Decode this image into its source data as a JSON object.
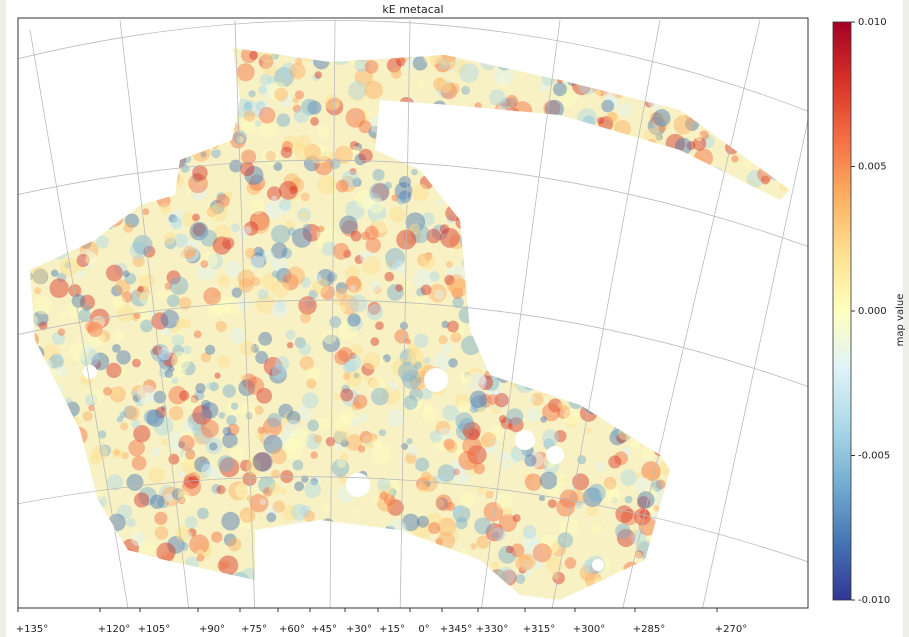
{
  "chart_data": {
    "type": "map",
    "title": "kE metacal",
    "colorbar_label": "map value",
    "colormap": [
      "#313695",
      "#4575b4",
      "#74add1",
      "#abd9e9",
      "#e0f3f8",
      "#ffffbf",
      "#fee090",
      "#fdae61",
      "#f46d43",
      "#d73027",
      "#a50026"
    ],
    "clim": [
      -0.01,
      0.01
    ],
    "cticks": [
      {
        "value": 0.01,
        "label": "0.010"
      },
      {
        "value": 0.005,
        "label": "0.005"
      },
      {
        "value": 0,
        "label": "0.000"
      },
      {
        "value": -0.005,
        "label": "-0.005"
      },
      {
        "value": -0.01,
        "label": "-0.010"
      }
    ],
    "xticks": [
      {
        "value": 135,
        "label": "+135°"
      },
      {
        "value": 120,
        "label": "+120°"
      },
      {
        "value": 105,
        "label": "+105°"
      },
      {
        "value": 90,
        "label": "+90°"
      },
      {
        "value": 75,
        "label": "+75°"
      },
      {
        "value": 60,
        "label": "+60°"
      },
      {
        "value": 45,
        "label": "+45°"
      },
      {
        "value": 30,
        "label": "+30°"
      },
      {
        "value": 15,
        "label": "+15°"
      },
      {
        "value": 0,
        "label": "0°"
      },
      {
        "value": 345,
        "label": "+345°"
      },
      {
        "value": 330,
        "label": "+330°"
      },
      {
        "value": 315,
        "label": "+315°"
      },
      {
        "value": 300,
        "label": "+300°"
      },
      {
        "value": 285,
        "label": "+285°"
      },
      {
        "value": 270,
        "label": "+270°"
      }
    ]
  }
}
